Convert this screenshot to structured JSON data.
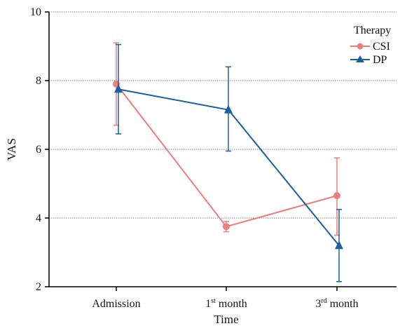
{
  "chart_data": {
    "type": "line",
    "title": "",
    "xlabel": "Time",
    "ylabel": "VAS",
    "ylim": [
      2,
      10
    ],
    "yticks": [
      2,
      4,
      6,
      8,
      10
    ],
    "categories": [
      {
        "base": "Admission",
        "sup": "",
        "rest": ""
      },
      {
        "base": "1",
        "sup": "st",
        "rest": " month"
      },
      {
        "base": "3",
        "sup": "rd",
        "rest": " month"
      }
    ],
    "grid": "horizontal dotted",
    "legend": {
      "title": "Therapy",
      "placement": "top-right"
    },
    "series": [
      {
        "name": "CSI",
        "marker": "circle",
        "color": "#f07b7b",
        "values": [
          7.9,
          3.75,
          4.65
        ],
        "err_low": [
          6.7,
          3.6,
          3.5
        ],
        "err_high": [
          9.1,
          3.9,
          5.75
        ]
      },
      {
        "name": "DP",
        "marker": "triangle",
        "color": "#1a5ea3",
        "values": [
          7.75,
          7.15,
          3.2
        ],
        "err_low": [
          6.45,
          5.95,
          2.15
        ],
        "err_high": [
          9.05,
          8.4,
          4.25
        ]
      }
    ]
  }
}
